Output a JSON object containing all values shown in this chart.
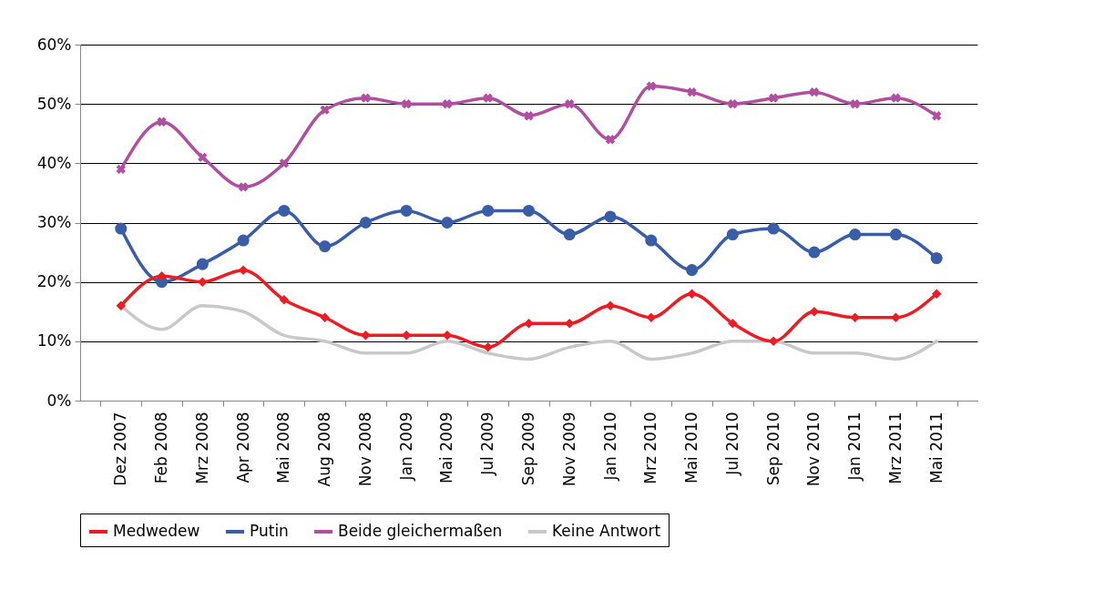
{
  "chart_data": {
    "type": "line",
    "categories": [
      "Dez 2007",
      "Feb 2008",
      "Mrz 2008",
      "Apr 2008",
      "Mai 2008",
      "Aug 2008",
      "Nov 2008",
      "Jan 2009",
      "Mai 2009",
      "Jul 2009",
      "Sep 2009",
      "Nov 2009",
      "Jan 2010",
      "Mrz 2010",
      "Mai 2010",
      "Jul 2010",
      "Sep 2010",
      "Nov 2010",
      "Jan 2011",
      "Mrz 2011",
      "Mai 2011"
    ],
    "series": [
      {
        "name": "Medwedew",
        "color": "#ed1c24",
        "marker": "diamond",
        "values": [
          16,
          21,
          20,
          22,
          17,
          14,
          11,
          11,
          11,
          9,
          13,
          13,
          16,
          14,
          18,
          13,
          10,
          15,
          14,
          14,
          18
        ]
      },
      {
        "name": "Putin",
        "color": "#3a5da8",
        "marker": "circle",
        "values": [
          29,
          20,
          23,
          27,
          32,
          26,
          30,
          32,
          30,
          32,
          32,
          28,
          31,
          27,
          22,
          28,
          29,
          25,
          28,
          28,
          24
        ]
      },
      {
        "name": "Beide gleichermaßen",
        "color": "#b04ea0",
        "marker": "cross",
        "values": [
          39,
          47,
          41,
          36,
          40,
          49,
          51,
          50,
          50,
          51,
          48,
          50,
          44,
          53,
          52,
          50,
          51,
          52,
          50,
          51,
          48
        ]
      },
      {
        "name": "Keine Antwort",
        "color": "#c8c8c8",
        "marker": "none",
        "values": [
          16,
          12,
          16,
          15,
          11,
          10,
          8,
          8,
          10,
          8,
          7,
          9,
          10,
          7,
          8,
          10,
          10,
          8,
          8,
          7,
          10
        ]
      }
    ],
    "ylim": [
      0,
      60
    ],
    "yticks": [
      {
        "value": 0,
        "label": "0%"
      },
      {
        "value": 10,
        "label": "10%"
      },
      {
        "value": 20,
        "label": "20%"
      },
      {
        "value": 30,
        "label": "30%"
      },
      {
        "value": 40,
        "label": "40%"
      },
      {
        "value": 50,
        "label": "50%"
      },
      {
        "value": 60,
        "label": "60%"
      }
    ],
    "grid": "y",
    "legend": "bottom",
    "line_style": "solid"
  }
}
